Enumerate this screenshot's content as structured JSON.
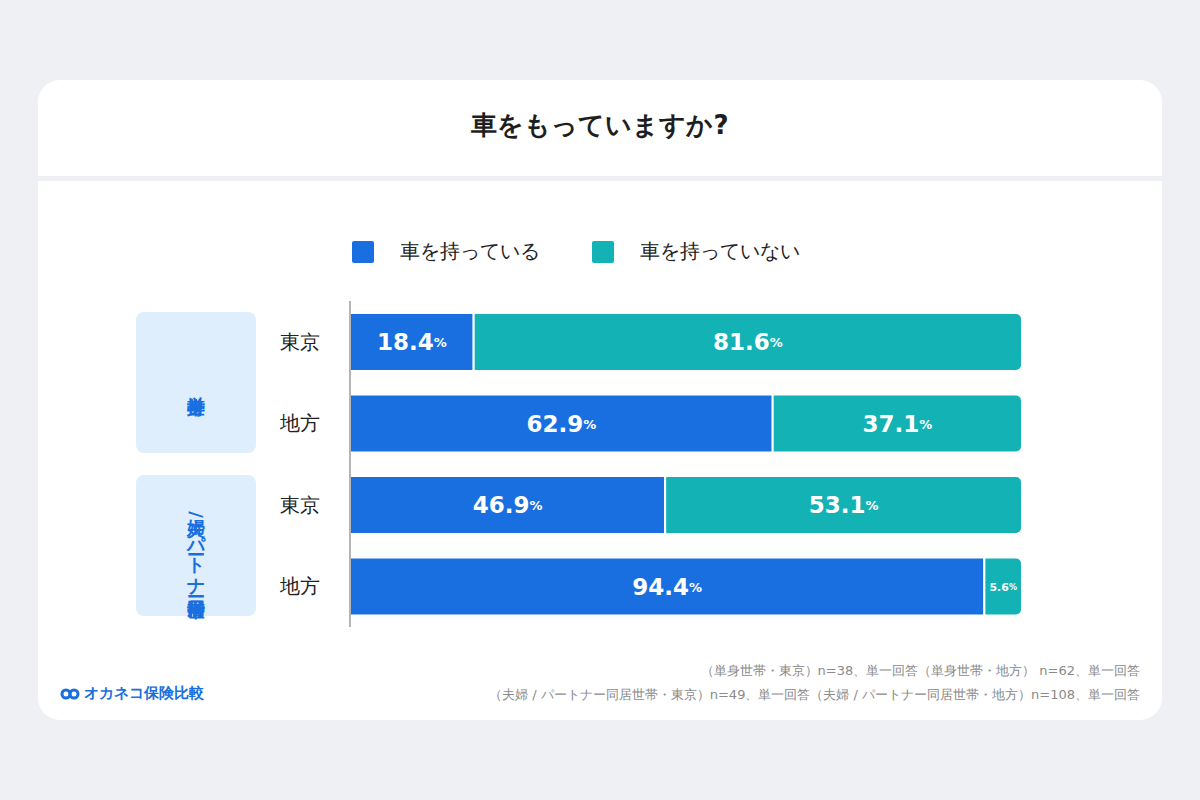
{
  "chart_data": {
    "type": "bar",
    "title": "車をもっていますか?",
    "orientation": "horizontal",
    "stacked": true,
    "data_labels": true,
    "tick_labels": "y",
    "legend": "top",
    "categories": [
      "東京",
      "地方",
      "東京",
      "地方"
    ],
    "category_groups": [
      "単身世帯",
      "単身世帯",
      "夫婦 / パートナー同居世帯",
      "夫婦 / パートナー同居世帯"
    ],
    "xlim": [
      0,
      100
    ],
    "series": [
      {
        "name": "車を持っている",
        "color": "#1a6fe0",
        "values": [
          18.4,
          62.9,
          46.9,
          94.4
        ],
        "value_labels": [
          "18.4%",
          "62.9%",
          "46.9%",
          "94.4%"
        ]
      },
      {
        "name": "車を持っていない",
        "color": "#12b2b5",
        "values": [
          81.6,
          37.1,
          53.1,
          5.6
        ],
        "value_labels": [
          "81.6%",
          "37.1%",
          "53.1%",
          "5.6%"
        ]
      }
    ],
    "notes": [
      "（単身世帯・東京）n=38、単一回答（単身世帯・地方） n=62、単一回答",
      "（夫婦 / パートナー同居世帯・東京）n=49、単一回答（夫婦 / パートナー同居世帯・地方）n=108、単一回答"
    ],
    "brand": "オカネコ保険比較"
  }
}
